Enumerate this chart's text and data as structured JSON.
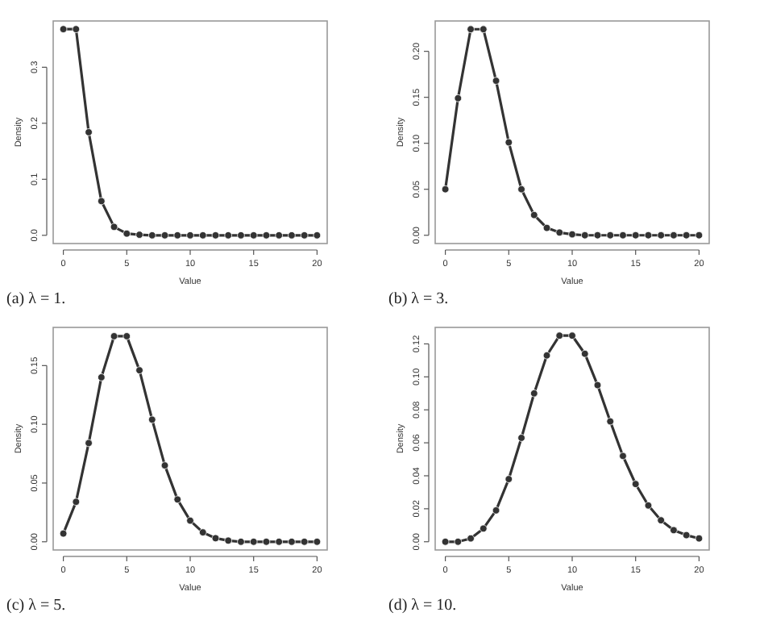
{
  "chart_data": [
    {
      "type": "line",
      "title": "(a) λ = 1.",
      "xlabel": "Value",
      "ylabel": "Density",
      "marker": "circle",
      "line_style": "solid",
      "grid": false,
      "x": [
        0,
        1,
        2,
        3,
        4,
        5,
        6,
        7,
        8,
        9,
        10,
        11,
        12,
        13,
        14,
        15,
        16,
        17,
        18,
        19,
        20
      ],
      "xlim": [
        -0.8,
        20.8
      ],
      "xticks": [
        0,
        5,
        10,
        15,
        20
      ],
      "ylim": [
        -0.0147,
        0.3826
      ],
      "yticks": [
        {
          "value": 0,
          "label": "0.0"
        },
        0.1,
        0.2,
        0.3
      ],
      "series": [
        {
          "color": "#333333",
          "values": [
            0.368,
            0.368,
            0.184,
            0.061,
            0.015,
            0.003,
            0.001,
            0,
            0,
            0,
            0,
            0,
            0,
            0,
            0,
            0,
            0,
            0,
            0,
            0,
            0
          ]
        }
      ]
    },
    {
      "type": "line",
      "title": "(b) λ = 3.",
      "xlabel": "Value",
      "ylabel": "Density",
      "marker": "circle",
      "line_style": "solid",
      "grid": false,
      "x": [
        0,
        1,
        2,
        3,
        4,
        5,
        6,
        7,
        8,
        9,
        10,
        11,
        12,
        13,
        14,
        15,
        16,
        17,
        18,
        19,
        20
      ],
      "xlim": [
        -0.8,
        20.8
      ],
      "xticks": [
        0,
        5,
        10,
        15,
        20
      ],
      "ylim": [
        -0.009,
        0.233
      ],
      "yticks": [
        {
          "value": 0,
          "label": "0.00"
        },
        0.05,
        {
          "value": 0.1,
          "label": "0.10"
        },
        0.15,
        {
          "value": 0.2,
          "label": "0.20"
        }
      ],
      "series": [
        {
          "color": "#333333",
          "values": [
            0.05,
            0.149,
            0.224,
            0.224,
            0.168,
            0.101,
            0.05,
            0.022,
            0.008,
            0.003,
            0.001,
            0,
            0,
            0,
            0,
            0,
            0,
            0,
            0,
            0,
            0
          ]
        }
      ]
    },
    {
      "type": "line",
      "title": "(c) λ = 5.",
      "xlabel": "Value",
      "ylabel": "Density",
      "marker": "circle",
      "line_style": "solid",
      "grid": false,
      "x": [
        0,
        1,
        2,
        3,
        4,
        5,
        6,
        7,
        8,
        9,
        10,
        11,
        12,
        13,
        14,
        15,
        16,
        17,
        18,
        19,
        20
      ],
      "xlim": [
        -0.8,
        20.8
      ],
      "xticks": [
        0,
        5,
        10,
        15,
        20
      ],
      "ylim": [
        -0.007,
        0.1825
      ],
      "yticks": [
        {
          "value": 0,
          "label": "0.00"
        },
        0.05,
        {
          "value": 0.1,
          "label": "0.10"
        },
        0.15
      ],
      "series": [
        {
          "color": "#333333",
          "values": [
            0.007,
            0.034,
            0.084,
            0.14,
            0.175,
            0.175,
            0.146,
            0.104,
            0.065,
            0.036,
            0.018,
            0.008,
            0.003,
            0.001,
            0,
            0,
            0,
            0,
            0,
            0,
            0
          ]
        }
      ]
    },
    {
      "type": "line",
      "title": "(d) λ = 10.",
      "xlabel": "Value",
      "ylabel": "Density",
      "marker": "circle",
      "line_style": "solid",
      "grid": false,
      "x": [
        0,
        1,
        2,
        3,
        4,
        5,
        6,
        7,
        8,
        9,
        10,
        11,
        12,
        13,
        14,
        15,
        16,
        17,
        18,
        19,
        20
      ],
      "xlim": [
        -0.8,
        20.8
      ],
      "xticks": [
        0,
        5,
        10,
        15,
        20
      ],
      "ylim": [
        -0.005,
        0.13
      ],
      "yticks": [
        {
          "value": 0,
          "label": "0.00"
        },
        0.02,
        0.04,
        0.06,
        0.08,
        {
          "value": 0.1,
          "label": "0.10"
        },
        0.12
      ],
      "series": [
        {
          "color": "#333333",
          "values": [
            0,
            0,
            0.002,
            0.008,
            0.019,
            0.038,
            0.063,
            0.09,
            0.113,
            0.125,
            0.125,
            0.114,
            0.095,
            0.073,
            0.052,
            0.035,
            0.022,
            0.013,
            0.007,
            0.004,
            0.002
          ]
        }
      ]
    }
  ]
}
